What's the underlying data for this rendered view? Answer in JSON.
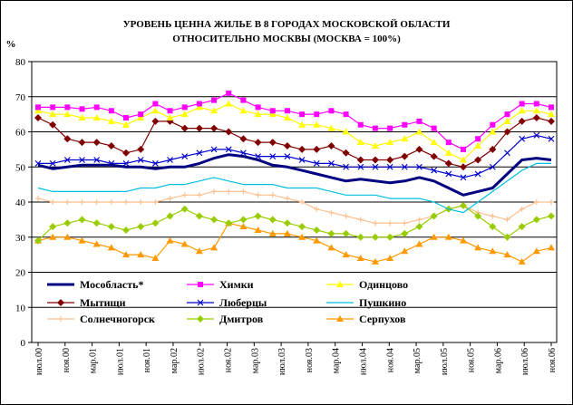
{
  "chart_data": {
    "type": "line",
    "title_line1": "УРОВЕНЬ ЦЕННА ЖИЛЬЕ В 8 ГОРОДАХ МОСКОВСКОЙ ОБЛАСТИ",
    "title_line2": "ОТНОСИТЕЛЬНО МОСКВЫ (МОСКВА = 100%)",
    "ylabel": "%",
    "ylim": [
      0,
      80
    ],
    "yticks": [
      0,
      10,
      20,
      30,
      40,
      50,
      60,
      70,
      80
    ],
    "grid": true,
    "legend_position": "bottom-inside",
    "x_labels": [
      "июл.00",
      "ноя.00",
      "мар.01",
      "июл.01",
      "ноя.01",
      "мар.02",
      "июл.02",
      "ноя.02",
      "мар.03",
      "июл.03",
      "ноя.03",
      "мар.04",
      "июл.04",
      "ноя.04",
      "мар.05",
      "июл.05",
      "ноя.05",
      "мар.06",
      "июл.06",
      "ноя.06"
    ],
    "series": [
      {
        "name": "Мособласть*",
        "color": "#000080",
        "marker": "none",
        "width": 3,
        "values": [
          50.5,
          49.5,
          50,
          50.5,
          50.5,
          50.5,
          50,
          50,
          49.5,
          50,
          50,
          51,
          52.5,
          53.5,
          53,
          52,
          50.5,
          50,
          49,
          48,
          47,
          46,
          46.5,
          46,
          45.5,
          46,
          47,
          46,
          44,
          42,
          43,
          44,
          48,
          52,
          52.5,
          52
        ]
      },
      {
        "name": "Химки",
        "color": "#ff00ff",
        "marker": "square",
        "values": [
          67,
          67,
          67,
          66.5,
          67,
          66,
          64,
          65,
          68,
          66,
          67,
          68,
          69,
          71,
          69,
          67,
          66,
          66,
          65,
          65,
          66,
          65,
          62,
          61,
          61,
          62,
          63,
          61,
          57,
          55,
          58,
          62,
          65,
          68,
          68,
          67
        ]
      },
      {
        "name": "Одинцово",
        "color": "#ffff00",
        "marker": "triangle",
        "values": [
          66,
          65,
          65,
          64,
          64,
          63,
          62,
          64,
          66,
          64,
          65,
          67,
          66,
          68,
          66,
          65,
          65,
          64,
          62,
          62,
          61,
          60,
          57,
          56,
          57,
          58,
          60,
          57,
          54,
          52,
          56,
          60,
          63,
          66,
          66,
          65
        ]
      },
      {
        "name": "Мытищи",
        "color": "#800000",
        "marker": "diamond",
        "values": [
          64,
          62,
          58,
          57,
          57,
          56,
          54,
          55,
          63,
          63,
          61,
          61,
          61,
          60,
          58,
          57,
          57,
          56,
          55,
          55,
          56,
          54,
          52,
          52,
          52,
          53,
          55,
          53,
          51,
          50,
          52,
          55,
          60,
          63,
          64,
          63
        ]
      },
      {
        "name": "Люберцы",
        "color": "#0000cc",
        "marker": "cross",
        "values": [
          51,
          51,
          52,
          52,
          52,
          51,
          51,
          52,
          51,
          52,
          53,
          54,
          55,
          55,
          54,
          53,
          53,
          53,
          52,
          51,
          51,
          50,
          50,
          50,
          50,
          50,
          50,
          49,
          48,
          47,
          48,
          50,
          54,
          58,
          59,
          58
        ]
      },
      {
        "name": "Пушкино",
        "color": "#00c0e0",
        "marker": "none",
        "values": [
          44,
          43,
          43,
          43,
          43,
          43,
          43,
          44,
          44,
          45,
          45,
          46,
          47,
          46,
          45,
          45,
          45,
          44,
          44,
          44,
          43,
          42,
          42,
          42,
          41,
          41,
          41,
          40,
          38,
          37,
          40,
          43,
          46,
          49,
          51,
          51
        ]
      },
      {
        "name": "Солнечногорск",
        "color": "#ffc090",
        "marker": "plus",
        "values": [
          41,
          40,
          40,
          40,
          40,
          40,
          40,
          40,
          40,
          41,
          42,
          42,
          43,
          43,
          43,
          42,
          42,
          41,
          40,
          38,
          37,
          36,
          35,
          34,
          34,
          34,
          35,
          36,
          38,
          39,
          37,
          36,
          35,
          38,
          40,
          40
        ]
      },
      {
        "name": "Дмитров",
        "color": "#99cc00",
        "marker": "diamond",
        "values": [
          29,
          33,
          34,
          35,
          34,
          33,
          32,
          33,
          34,
          36,
          38,
          36,
          35,
          34,
          35,
          36,
          35,
          34,
          33,
          32,
          31,
          31,
          30,
          30,
          30,
          31,
          33,
          36,
          38,
          39,
          36,
          33,
          30,
          33,
          35,
          36
        ]
      },
      {
        "name": "Серпухов",
        "color": "#ff9900",
        "marker": "triangle",
        "values": [
          29,
          30,
          30,
          29,
          28,
          27,
          25,
          25,
          24,
          29,
          28,
          26,
          27,
          34,
          33,
          32,
          31,
          31,
          30,
          29,
          27,
          25,
          24,
          23,
          24,
          26,
          28,
          30,
          30,
          29,
          27,
          26,
          25,
          23,
          26,
          27
        ]
      }
    ]
  }
}
